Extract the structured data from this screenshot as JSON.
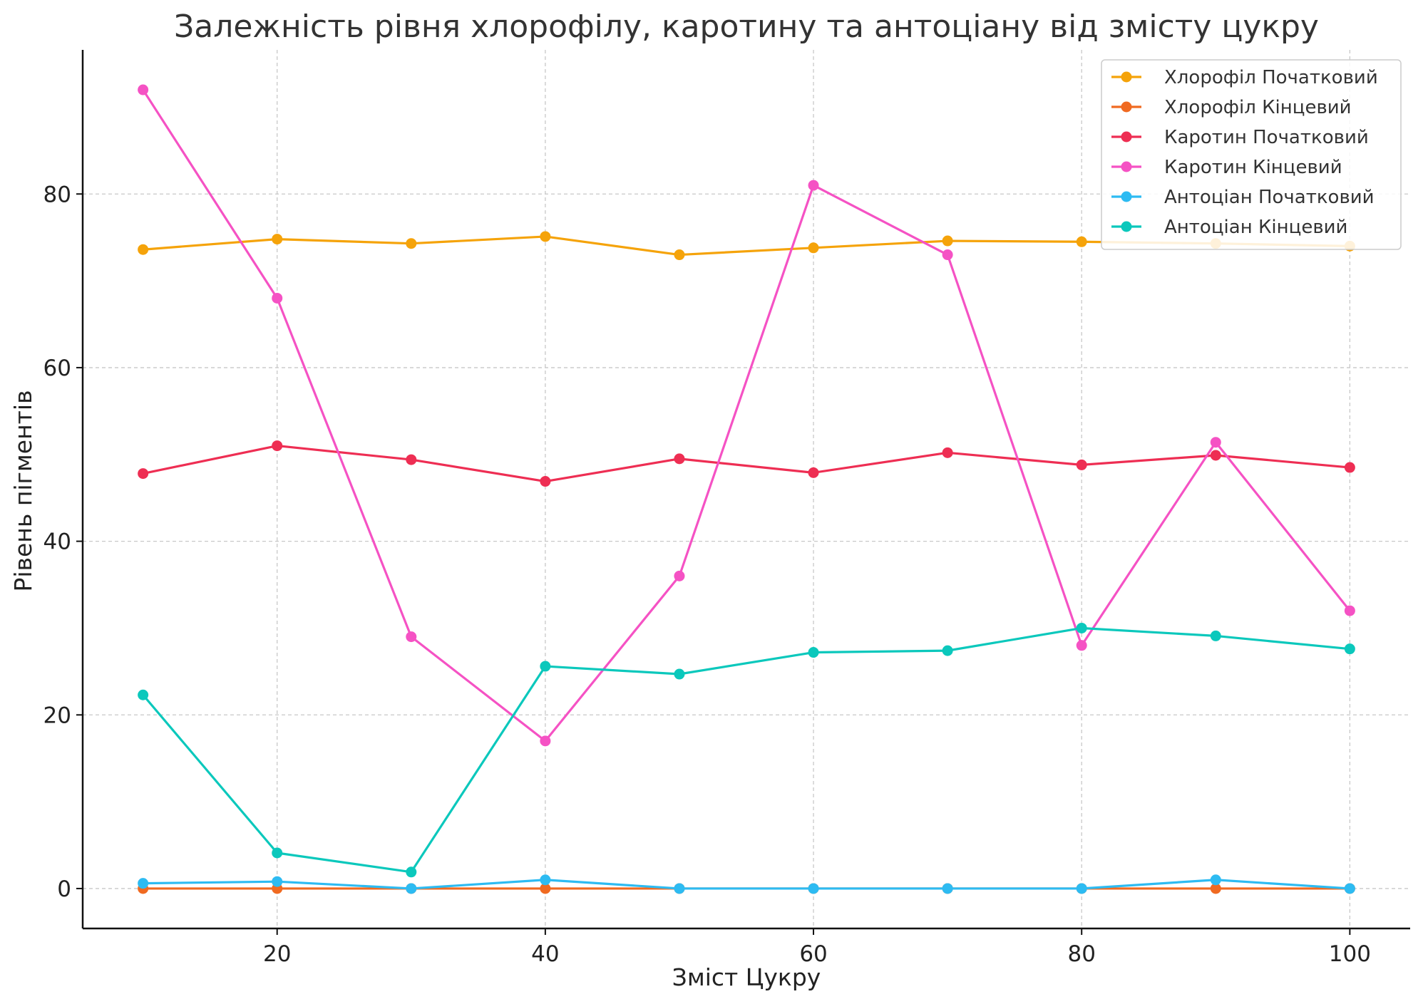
{
  "chart_data": {
    "type": "line",
    "title": "Залежність рівня хлорофілу, каротину та антоціану від змісту цукру",
    "xlabel": "Зміст Цукру",
    "ylabel": "Рівень пігментів",
    "x": [
      10,
      20,
      30,
      40,
      50,
      60,
      70,
      80,
      90,
      100
    ],
    "xlim": [
      5.5,
      104.5
    ],
    "ylim": [
      -4.6,
      96.6
    ],
    "xticks": [
      20,
      40,
      60,
      80,
      100
    ],
    "yticks": [
      0,
      20,
      40,
      60,
      80
    ],
    "grid": true,
    "legend_position": "top-right",
    "series": [
      {
        "name": "Хлорофіл Початковий",
        "color": "#F5A30A",
        "values": [
          73.6,
          74.8,
          74.3,
          75.1,
          73.0,
          73.8,
          74.6,
          74.5,
          74.3,
          74.0
        ]
      },
      {
        "name": "Хлорофіл Кінцевий",
        "color": "#F06A21",
        "values": [
          0,
          0,
          0,
          0,
          0,
          0,
          0,
          0,
          0,
          0
        ]
      },
      {
        "name": "Каротин Початковий",
        "color": "#EE2E53",
        "values": [
          47.8,
          51.0,
          49.4,
          46.9,
          49.5,
          47.9,
          50.2,
          48.8,
          49.9,
          48.5
        ]
      },
      {
        "name": "Каротин Кінцевий",
        "color": "#F552C4",
        "values": [
          92.0,
          68.0,
          29.0,
          17.0,
          36.0,
          81.0,
          73.0,
          28.0,
          51.4,
          32.0
        ]
      },
      {
        "name": "Антоціан Початковий",
        "color": "#2DBBF2",
        "values": [
          0.6,
          0.8,
          0,
          1.0,
          0,
          0,
          0,
          0,
          1.0,
          0
        ]
      },
      {
        "name": "Антоціан Кінцевий",
        "color": "#0BC8BC",
        "values": [
          22.3,
          4.1,
          1.9,
          25.6,
          24.7,
          27.2,
          27.4,
          30.0,
          29.1,
          27.6
        ]
      }
    ]
  }
}
